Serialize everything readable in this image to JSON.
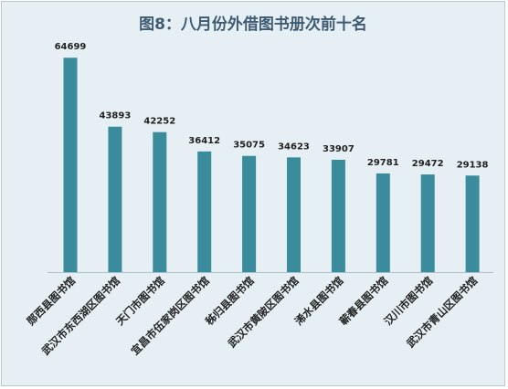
{
  "chart_data": {
    "type": "bar",
    "title": "图8：八月份外借图书册次前十名",
    "categories": [
      "郧西县图书馆",
      "武汉市东西湖区图书馆",
      "天门市图书馆",
      "宜昌市伍家岗区图书馆",
      "秭归县图书馆",
      "武汉市黄陂区图书馆",
      "浠水县图书馆",
      "蕲春县图书馆",
      "汉川市图书馆",
      "武汉市青山区图书馆"
    ],
    "values": [
      64699,
      43893,
      42252,
      36412,
      35075,
      34623,
      33907,
      29781,
      29472,
      29138
    ],
    "xlabel": "",
    "ylabel": "",
    "ylim": [
      0,
      70000
    ],
    "grid": false,
    "legend": "none",
    "colors": {
      "bar": "#3a8b9c",
      "background": "#e6eff4",
      "title": "#3f5b72",
      "label": "#222222"
    }
  }
}
